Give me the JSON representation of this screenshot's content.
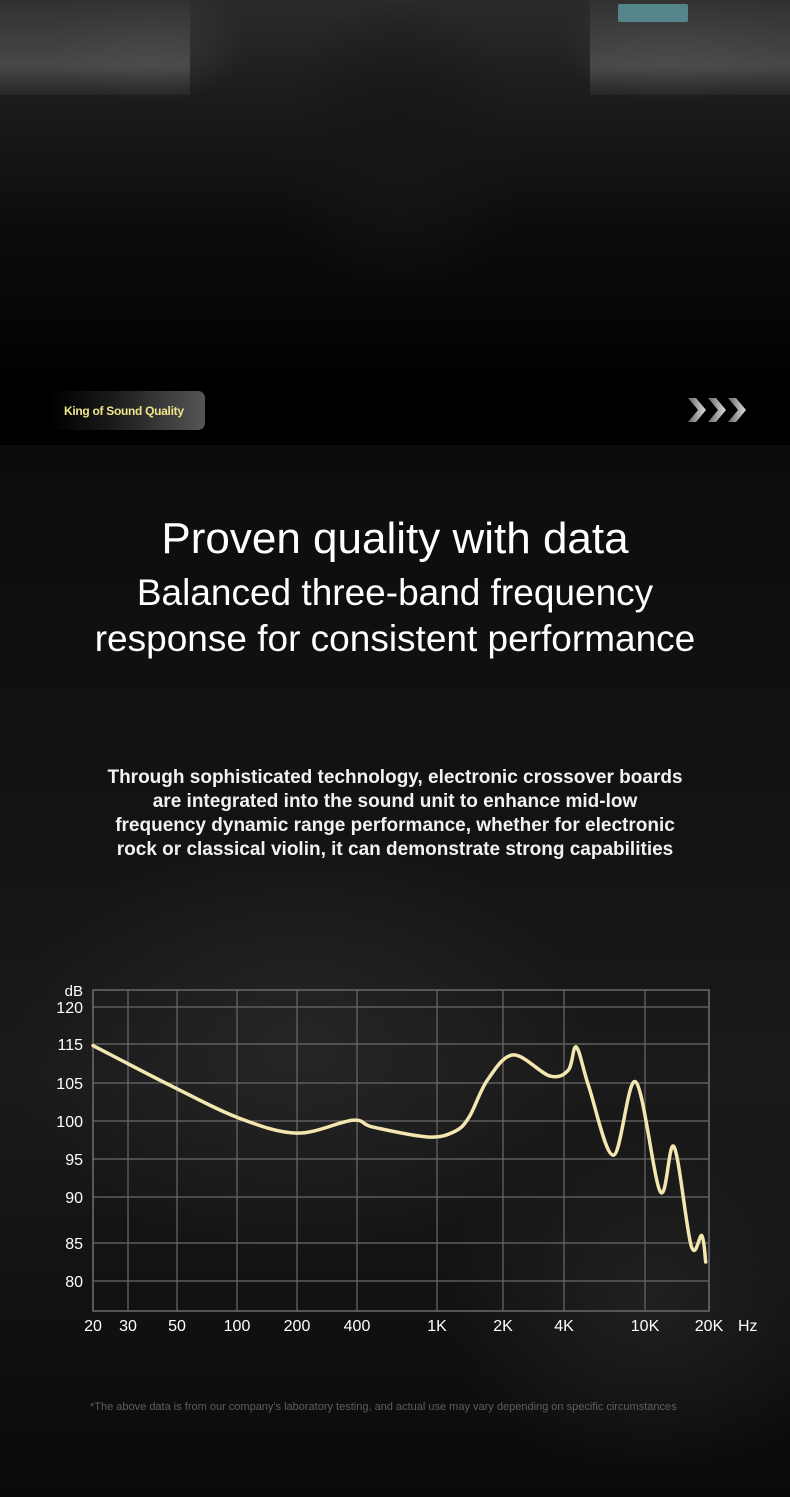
{
  "badge": {
    "label": "King of Sound Quality"
  },
  "icons": {
    "next": "triple-chevron-right-icon"
  },
  "heading": {
    "title": "Proven quality with data",
    "subtitle": "Balanced three-band frequency response for consistent performance"
  },
  "description": "Through sophisticated technology, electronic crossover boards are integrated into the sound unit to enhance mid-low frequency dynamic range performance, whether for electronic rock or classical violin, it can demonstrate strong capabilities",
  "colors": {
    "curve": "#f3e6b0",
    "grid": "#6a6a6a",
    "badge_text": "#efe58a"
  },
  "chart_data": {
    "type": "line",
    "ylabel": "dB",
    "xlabel": "Hz",
    "x_ticks": [
      20,
      30,
      50,
      100,
      200,
      400,
      1000,
      2000,
      4000,
      10000,
      20000
    ],
    "x_tick_labels": [
      "20",
      "30",
      "50",
      "100",
      "200",
      "400",
      "1K",
      "2K",
      "4K",
      "10K",
      "20K"
    ],
    "y_ticks": [
      120,
      115,
      105,
      100,
      95,
      90,
      85,
      80
    ],
    "y_tick_labels": [
      "120",
      "115",
      "105",
      "100",
      "95",
      "90",
      "85",
      "80"
    ],
    "xlim": [
      20,
      20000
    ],
    "grid": true,
    "series": [
      {
        "x": [
          20,
          48,
          102,
          200,
          380,
          480,
          900,
          1200,
          1400,
          1700,
          2250,
          3400,
          4200,
          4600,
          5300,
          7000,
          9000,
          11800,
          13700,
          16500,
          18500,
          19300
        ],
        "y": [
          114.6,
          104.5,
          100.4,
          98.4,
          100.1,
          99.2,
          97.9,
          98.6,
          100.5,
          105.8,
          112.2,
          106.8,
          108.3,
          114.2,
          104.5,
          95.5,
          105.3,
          90.7,
          96.6,
          84.6,
          85.8,
          82.5
        ]
      }
    ]
  },
  "footnote": "*The above data is from our company's laboratory testing, and actual use may vary depending on specific circumstances"
}
